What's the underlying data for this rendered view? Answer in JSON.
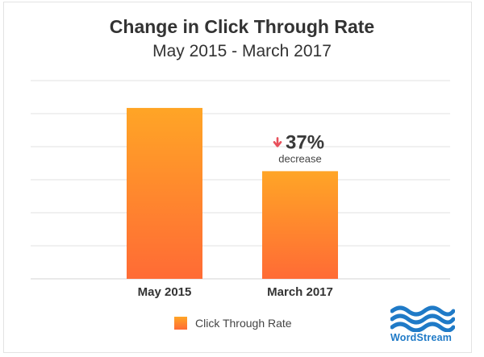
{
  "colors": {
    "bar_top": "#ffa526",
    "bar_bottom": "#ff6b35",
    "grid": "#e2e2e2",
    "arrow": "#e8505b",
    "logo_blue": "#1f7ac7"
  },
  "chart_data": {
    "type": "bar",
    "title": "Change in Click Through Rate",
    "subtitle": "May 2015 - March 2017",
    "categories": [
      "May 2015",
      "March 2017"
    ],
    "series": [
      {
        "name": "Click Through Rate",
        "values": [
          100,
          63
        ]
      }
    ],
    "ylim": [
      0,
      116
    ],
    "grid": true,
    "legend_position": "bottom",
    "annotation": {
      "category": "March 2017",
      "value": "37%",
      "text": "decrease",
      "icon": "arrow-down-icon"
    }
  },
  "logo": {
    "text": "WordStream",
    "icon": "waves-logo-icon"
  }
}
